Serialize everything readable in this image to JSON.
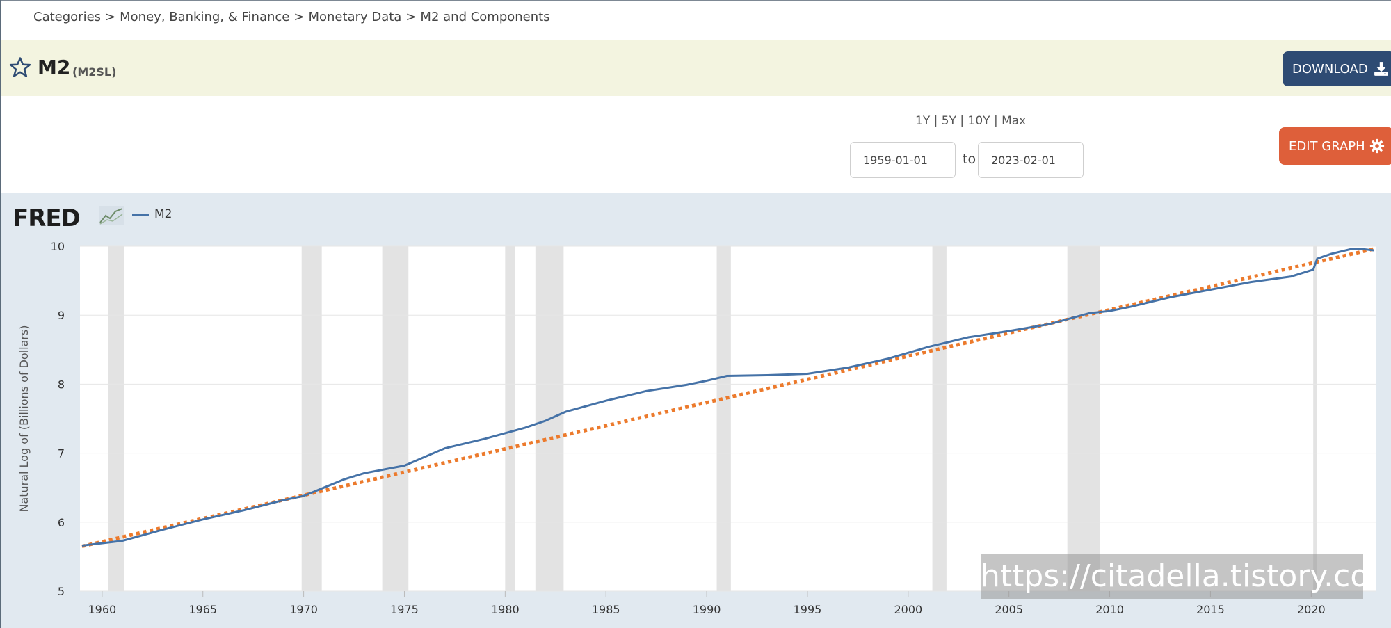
{
  "breadcrumb": {
    "items": [
      "Categories",
      "Money, Banking, & Finance",
      "Monetary Data",
      "M2 and Components"
    ],
    "separator": ">"
  },
  "header": {
    "title": "M2",
    "series_id": "(M2SL)",
    "download_label": "DOWNLOAD",
    "star_icon": "star-outline-icon",
    "download_icon": "download-icon"
  },
  "controls": {
    "ranges": [
      "1Y",
      "5Y",
      "10Y",
      "Max"
    ],
    "range_separator": "|",
    "start_date": "1959-01-01",
    "end_date": "2023-02-01",
    "to_label": "to",
    "edit_graph_label": "EDIT GRAPH",
    "edit_icon": "gear-icon"
  },
  "chart_header": {
    "logo_text": "FRED",
    "legend_label": "M2",
    "logo_icon": "fred-chart-icon"
  },
  "colors": {
    "series": "#4572a7",
    "trend": "#ec7a2c",
    "recession": "#e3e3e3",
    "panel": "#e1e9f0",
    "download_button": "#2e4b73",
    "edit_button": "#de5f3a"
  },
  "chart_data": {
    "type": "line",
    "ylabel": "Natural Log of (Billions of Dollars)",
    "xlim": [
      1958.9,
      2023.2
    ],
    "ylim": [
      5,
      10
    ],
    "yticks": [
      5,
      6,
      7,
      8,
      9,
      10
    ],
    "xticks": [
      1960,
      1965,
      1970,
      1975,
      1980,
      1985,
      1990,
      1995,
      2000,
      2005,
      2010,
      2015,
      2020
    ],
    "grid": true,
    "recessions": [
      [
        1960.3,
        1961.1
      ],
      [
        1969.9,
        1970.9
      ],
      [
        1973.9,
        1975.2
      ],
      [
        1980.0,
        1980.5
      ],
      [
        1981.5,
        1982.9
      ],
      [
        1990.5,
        1991.2
      ],
      [
        2001.2,
        2001.9
      ],
      [
        2007.9,
        2009.5
      ],
      [
        2020.1,
        2020.3
      ]
    ],
    "series": [
      {
        "name": "M2",
        "x": [
          1959,
          1961,
          1963,
          1965,
          1967,
          1969,
          1970,
          1971,
          1972,
          1973,
          1975,
          1977,
          1979,
          1981,
          1982,
          1983,
          1985,
          1987,
          1989,
          1990,
          1991,
          1993,
          1995,
          1997,
          1999,
          2001,
          2003,
          2005,
          2007,
          2008,
          2009,
          2010,
          2011,
          2013,
          2015,
          2017,
          2019,
          2020.1,
          2020.3,
          2021,
          2022,
          2022.5,
          2023.1
        ],
        "y": [
          5.66,
          5.73,
          5.89,
          6.04,
          6.17,
          6.32,
          6.38,
          6.5,
          6.62,
          6.71,
          6.82,
          7.07,
          7.21,
          7.37,
          7.47,
          7.6,
          7.76,
          7.9,
          7.99,
          8.05,
          8.12,
          8.13,
          8.15,
          8.24,
          8.37,
          8.54,
          8.68,
          8.77,
          8.87,
          8.95,
          9.03,
          9.06,
          9.12,
          9.26,
          9.37,
          9.48,
          9.56,
          9.66,
          9.82,
          9.89,
          9.96,
          9.96,
          9.94
        ]
      },
      {
        "name": "",
        "style": "dotted-trend",
        "x": [
          1959,
          2023.1
        ],
        "y": [
          5.65,
          9.96
        ]
      }
    ]
  },
  "watermark": "https://citadella.tistory.com"
}
